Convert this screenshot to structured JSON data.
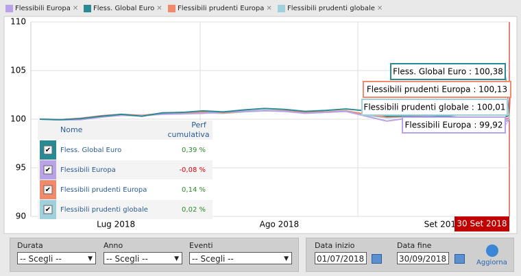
{
  "chart_data": {
    "type": "line",
    "categories": [
      null,
      null,
      null,
      null,
      "Lug 2018",
      null,
      null,
      null,
      null,
      null,
      null,
      null,
      "Ago 2018",
      null,
      null,
      null,
      null,
      null,
      null,
      null,
      "Set 2018",
      null,
      null,
      null
    ],
    "series": [
      {
        "name": "Flessibili Europa",
        "color": "#b9a3e8",
        "values": [
          100,
          99.9,
          99.95,
          100.2,
          100.4,
          100.35,
          100.5,
          100.55,
          100.6,
          100.75,
          100.8,
          100.9,
          100.8,
          100.6,
          100.7,
          100.8,
          100.3,
          99.8,
          100.1,
          100.3,
          100.2,
          99.9,
          99.1,
          99.92
        ]
      },
      {
        "name": "Fless. Global Euro",
        "color": "#2a8a93",
        "values": [
          100,
          99.95,
          100.05,
          100.3,
          100.5,
          100.3,
          100.65,
          100.7,
          100.85,
          100.75,
          100.95,
          101.1,
          101.0,
          100.8,
          100.9,
          101.05,
          100.85,
          100.3,
          100.35,
          100.4,
          100.3,
          100.1,
          99.6,
          100.38
        ]
      },
      {
        "name": "Flessibili prudenti Europa",
        "color": "#f08a6a",
        "values": [
          100,
          99.95,
          100.1,
          100.35,
          100.5,
          100.4,
          100.6,
          100.6,
          100.7,
          100.65,
          100.8,
          100.9,
          100.85,
          100.7,
          100.75,
          100.85,
          100.5,
          100.2,
          100.3,
          100.35,
          100.25,
          100.05,
          99.6,
          100.13
        ]
      },
      {
        "name": "Flessibili prudenti globale",
        "color": "#9fd0dc",
        "values": [
          100,
          99.95,
          100.05,
          100.25,
          100.4,
          100.35,
          100.55,
          100.55,
          100.65,
          100.6,
          100.75,
          100.85,
          100.8,
          100.65,
          100.7,
          100.8,
          100.4,
          100.15,
          100.25,
          100.3,
          100.2,
          100.0,
          99.5,
          100.01
        ]
      }
    ],
    "callouts": [
      "Flessibili Europa : 99,92",
      "Fless. Global Euro : 100,38",
      "Flessibili prudenti Europa : 100,13",
      "Flessibili prudenti globale : 100,01"
    ],
    "end_date_label": "30 Set 2018",
    "ylim": [
      90,
      110
    ],
    "yticks": [
      90,
      95,
      100,
      105,
      110
    ],
    "grid": true
  },
  "table": {
    "header": [
      "Nome",
      "Perf",
      "cumulativa"
    ],
    "rows": [
      [
        "Fless. Global Euro",
        "0,39 %"
      ],
      [
        "Flessibili Europa",
        "-0,08 %"
      ],
      [
        "Flessibili prudenti Europa",
        "0,14 %"
      ],
      [
        "Flessibili prudenti globale",
        "0,02 %"
      ]
    ]
  },
  "form": {
    "durata": "Durata",
    "anno": "Anno",
    "eventi": "Eventi",
    "choose": "-- Scegli --",
    "data_inizio": "Data inizio",
    "data_fine": "Data fine",
    "start": "01/07/2018",
    "end": "30/09/2018",
    "button": "Aggiorna"
  }
}
